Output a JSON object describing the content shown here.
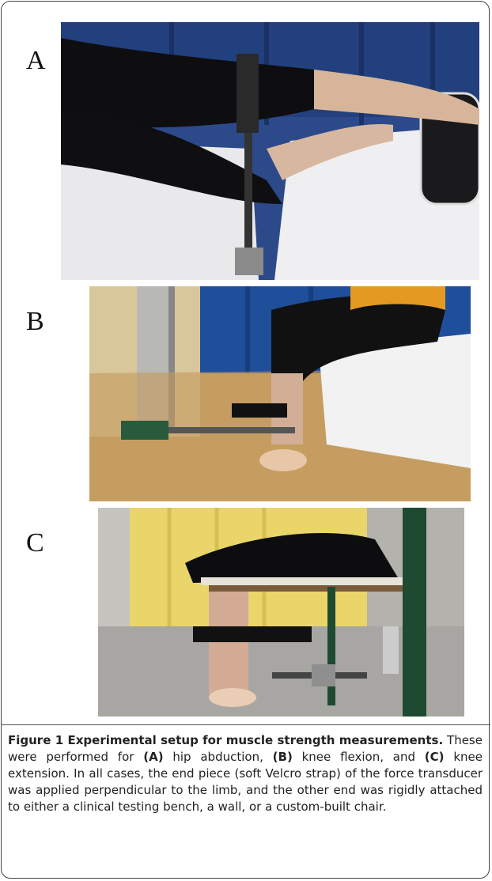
{
  "panels": [
    {
      "label": "A"
    },
    {
      "label": "B"
    },
    {
      "label": "C"
    }
  ],
  "caption": {
    "title": "Figure 1 Experimental setup for muscle strength measurements.",
    "body": [
      "These were performed for ",
      "(A)",
      " hip abduction, ",
      "(B)",
      " knee flexion, and ",
      "(C)",
      " knee extension. In all cases, the end piece (soft Velcro strap) of the force transducer was applied perpendicular to the limb, and the other end was rigidly attached to either a clinical testing bench, a wall, or a custom-built chair."
    ]
  }
}
